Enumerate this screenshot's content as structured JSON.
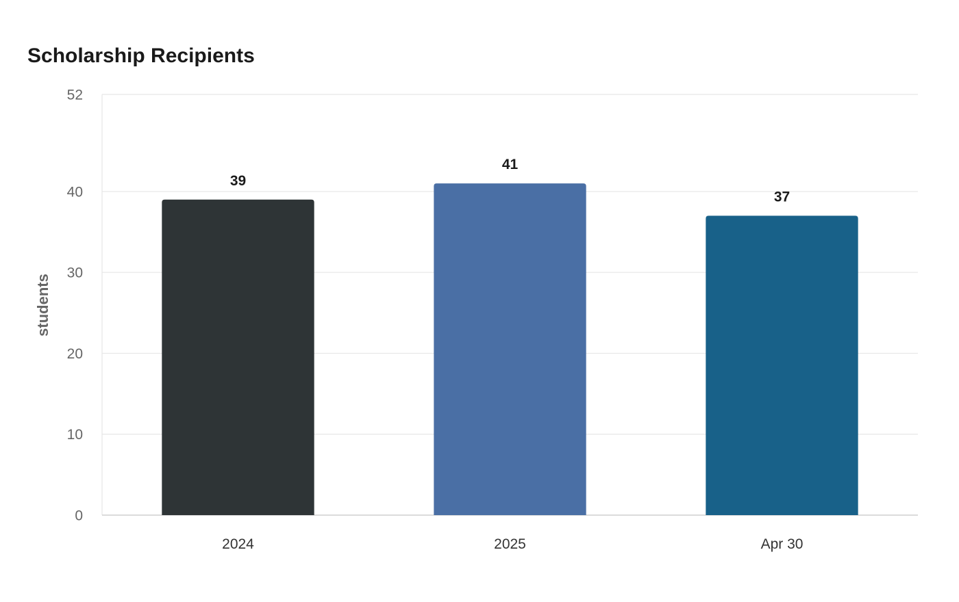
{
  "chart_data": {
    "type": "bar",
    "title": "Scholarship Recipients",
    "xlabel": "",
    "ylabel": "students",
    "categories": [
      "2024",
      "2025",
      "Apr 30"
    ],
    "values": [
      39,
      41,
      37
    ],
    "data_labels": [
      "39",
      "41",
      "37"
    ],
    "colors": [
      "#2e3436",
      "#4a6fa5",
      "#186189"
    ],
    "ylim": [
      0,
      52
    ],
    "yticks": [
      0,
      10,
      20,
      30,
      40,
      52
    ],
    "grid": true,
    "legend": "none"
  }
}
